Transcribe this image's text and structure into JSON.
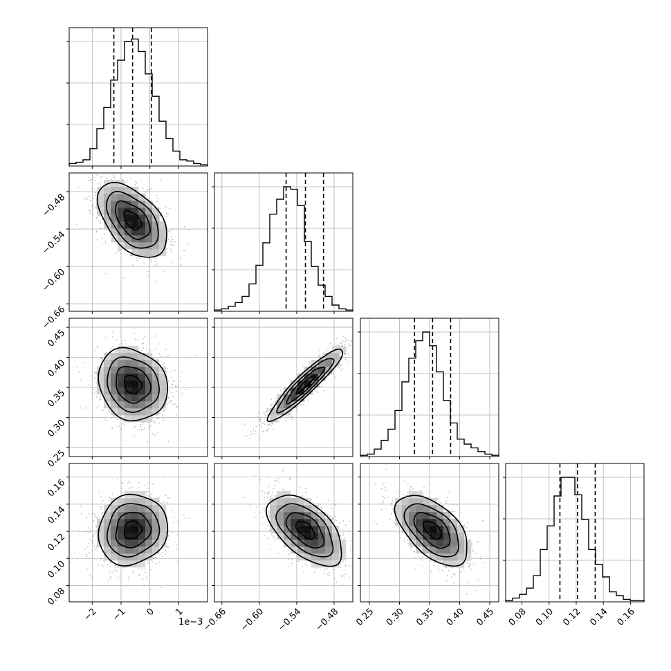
{
  "chart_data": {
    "type": "corner",
    "grid": true,
    "n_params": 4,
    "parameters": [
      {
        "range": [
          -2.8,
          2.0
        ],
        "ticks": [
          -2,
          -1,
          0,
          1
        ],
        "tick_labels": [
          "−2",
          "−1",
          "0",
          "1"
        ],
        "offset_label": "1e−3",
        "quantiles": [
          -1.25,
          -0.6,
          0.05
        ],
        "mean": -0.6,
        "sd": 0.6,
        "hist": [
          0.02,
          0.03,
          0.05,
          0.14,
          0.3,
          0.47,
          0.69,
          0.85,
          1.0,
          1.02,
          0.92,
          0.74,
          0.56,
          0.36,
          0.22,
          0.12,
          0.05,
          0.04,
          0.02,
          0.01
        ]
      },
      {
        "range": [
          -0.672,
          -0.45
        ],
        "ticks": [
          -0.66,
          -0.6,
          -0.54,
          -0.48
        ],
        "tick_labels": [
          "−0.66",
          "−0.60",
          "−0.54",
          "−0.48"
        ],
        "quantiles": [
          -0.557,
          -0.526,
          -0.497
        ],
        "mean": -0.526,
        "sd": 0.03,
        "hist": [
          0.01,
          0.02,
          0.04,
          0.07,
          0.12,
          0.22,
          0.37,
          0.55,
          0.78,
          0.9,
          1.0,
          0.98,
          0.85,
          0.56,
          0.36,
          0.21,
          0.12,
          0.05,
          0.02,
          0.01
        ]
      },
      {
        "range": [
          0.235,
          0.465
        ],
        "ticks": [
          0.25,
          0.3,
          0.35,
          0.4,
          0.45
        ],
        "tick_labels": [
          "0.25",
          "0.30",
          "0.35",
          "0.40",
          "0.45"
        ],
        "quantiles": [
          0.325,
          0.355,
          0.385
        ],
        "mean": 0.355,
        "sd": 0.03,
        "hist": [
          0.01,
          0.02,
          0.06,
          0.13,
          0.22,
          0.37,
          0.6,
          0.79,
          0.93,
          1.0,
          0.89,
          0.68,
          0.45,
          0.27,
          0.14,
          0.1,
          0.07,
          0.04,
          0.02,
          0.01
        ]
      },
      {
        "range": [
          0.068,
          0.17
        ],
        "ticks": [
          0.08,
          0.1,
          0.12,
          0.14,
          0.16
        ],
        "tick_labels": [
          "0.08",
          "0.10",
          "0.12",
          "0.14",
          "0.16"
        ],
        "quantiles": [
          0.108,
          0.121,
          0.134
        ],
        "mean": 0.121,
        "sd": 0.013,
        "hist": [
          0.01,
          0.03,
          0.06,
          0.11,
          0.21,
          0.42,
          0.61,
          0.85,
          1.0,
          1.0,
          0.86,
          0.66,
          0.42,
          0.3,
          0.2,
          0.08,
          0.05,
          0.02,
          0.01,
          0.01
        ]
      }
    ],
    "correlations": [
      {
        "pair": [
          0,
          1
        ],
        "rho": -0.5
      },
      {
        "pair": [
          0,
          2
        ],
        "rho": -0.15
      },
      {
        "pair": [
          0,
          3
        ],
        "rho": 0.1
      },
      {
        "pair": [
          1,
          2
        ],
        "rho": 0.93
      },
      {
        "pair": [
          1,
          3
        ],
        "rho": -0.55
      },
      {
        "pair": [
          2,
          3
        ],
        "rho": -0.55
      }
    ]
  }
}
